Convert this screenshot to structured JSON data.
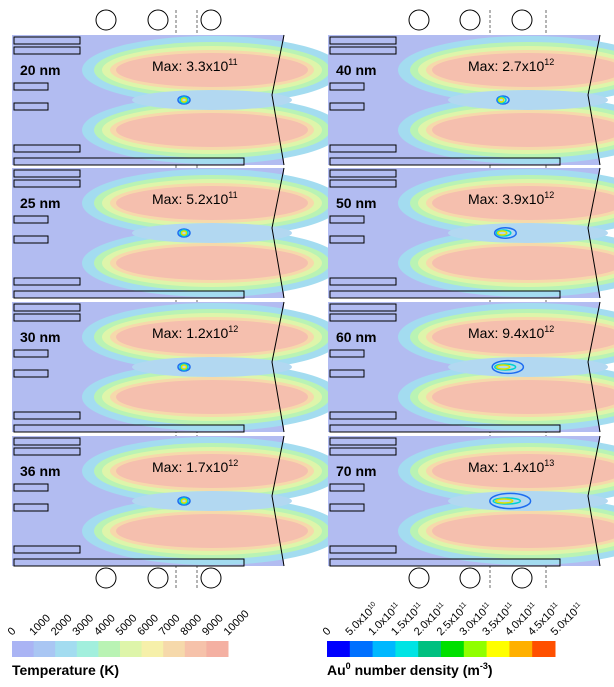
{
  "panels": [
    {
      "label": "20 nm",
      "max": {
        "text": "Max: 3.3x10",
        "exponent": "11"
      }
    },
    {
      "label": "25 nm",
      "max": {
        "text": "Max: 5.2x10",
        "exponent": "11"
      }
    },
    {
      "label": "30 nm",
      "max": {
        "text": "Max: 1.2x10",
        "exponent": "12"
      }
    },
    {
      "label": "36 nm",
      "max": {
        "text": "Max: 1.7x10",
        "exponent": "12"
      }
    },
    {
      "label": "40 nm",
      "max": {
        "text": "Max: 2.7x10",
        "exponent": "12"
      }
    },
    {
      "label": "50 nm",
      "max": {
        "text": "Max: 3.9x10",
        "exponent": "12"
      }
    },
    {
      "label": "60 nm",
      "max": {
        "text": "Max: 9.4x10",
        "exponent": "12"
      }
    },
    {
      "label": "70 nm",
      "max": {
        "text": "Max: 1.4x10",
        "exponent": "13"
      }
    }
  ],
  "temperature_colorbar": {
    "title": "Temperature (K)",
    "labels": [
      "0",
      "1000",
      "2000",
      "3000",
      "4000",
      "5000",
      "6000",
      "7000",
      "8000",
      "9000",
      "10000"
    ],
    "colors": [
      "#aab4f4",
      "#a9c6f3",
      "#a3dcf0",
      "#a2efdd",
      "#b9f3b4",
      "#def5aa",
      "#f6f0aa",
      "#f6d9ab",
      "#f6c2aa",
      "#f4b0a2"
    ]
  },
  "density_colorbar": {
    "title": {
      "text": "Au",
      "superscript": "0",
      "text2": " number density (m",
      "superscript2": "-3",
      "text3": ")"
    },
    "labels": [
      {
        "text": "0",
        "exponent": ""
      },
      {
        "text": "5.0x10",
        "exponent": "10"
      },
      {
        "text": "1.0x10",
        "exponent": "11"
      },
      {
        "text": "1.5x10",
        "exponent": "11"
      },
      {
        "text": "2.0x10",
        "exponent": "11"
      },
      {
        "text": "2.5x10",
        "exponent": "11"
      },
      {
        "text": "3.0x10",
        "exponent": "11"
      },
      {
        "text": "3.5x10",
        "exponent": "11"
      },
      {
        "text": "4.0x10",
        "exponent": "11"
      },
      {
        "text": "4.5x10",
        "exponent": "11"
      },
      {
        "text": "5.0x10",
        "exponent": "11"
      }
    ],
    "colors": [
      "#0000ff",
      "#0070ff",
      "#00b8ff",
      "#00e4e4",
      "#00c080",
      "#00e000",
      "#90ff00",
      "#ffff00",
      "#ffb000",
      "#ff5000"
    ]
  }
}
